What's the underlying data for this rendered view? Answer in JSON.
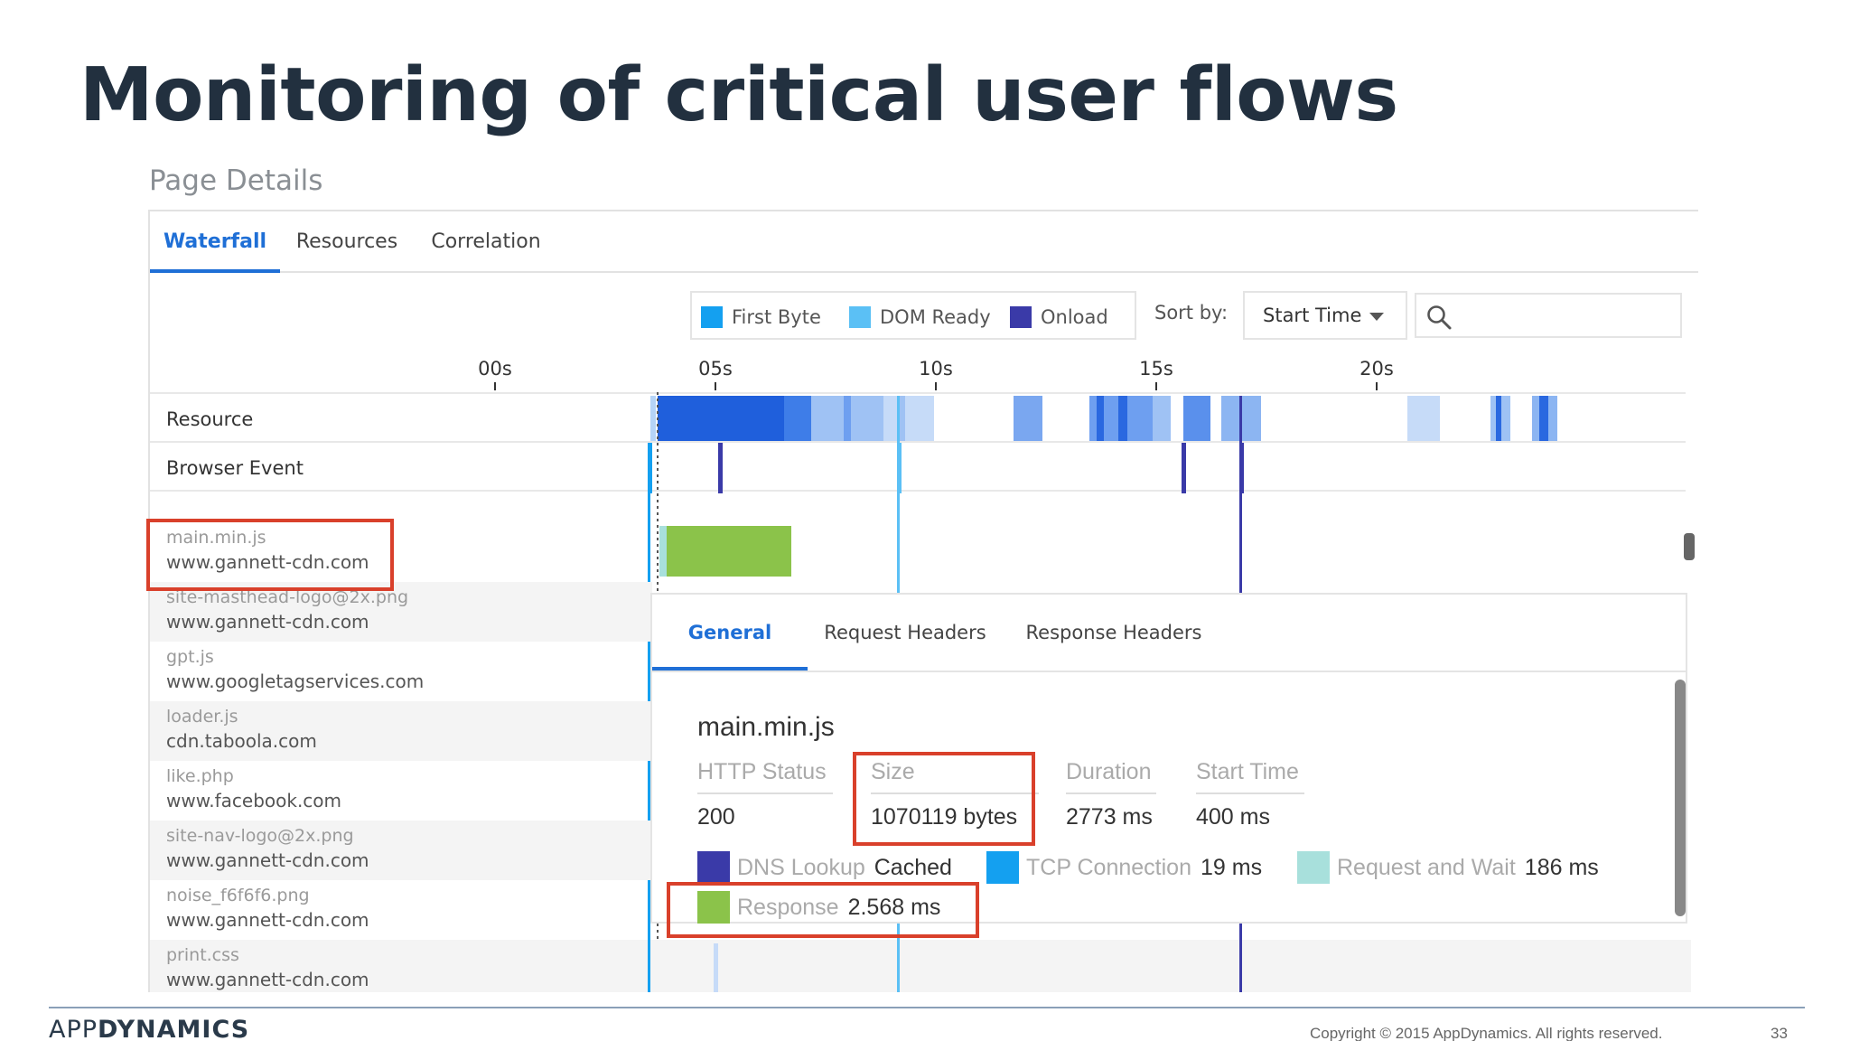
{
  "slide": {
    "title": "Monitoring of critical user flows",
    "page_number": "33",
    "copyright": "Copyright © 2015 AppDynamics. All rights reserved.",
    "logo_light": "APP",
    "logo_bold": "DYNAMICS"
  },
  "page_details": {
    "title": "Page Details",
    "tabs": [
      {
        "label": "Waterfall",
        "active": true
      },
      {
        "label": "Resources",
        "active": false
      },
      {
        "label": "Correlation",
        "active": false
      }
    ]
  },
  "legend": {
    "items": [
      {
        "label": "First Byte",
        "color": "#14a0f0"
      },
      {
        "label": "DOM Ready",
        "color": "#5bc0f5"
      },
      {
        "label": "Onload",
        "color": "#3a3aa8"
      }
    ]
  },
  "sort": {
    "label": "Sort by:",
    "value": "Start Time"
  },
  "search": {
    "icon": "search-icon",
    "value": ""
  },
  "timeline": {
    "ticks": [
      "00s",
      "05s",
      "10s",
      "15s",
      "20s"
    ],
    "rows": [
      "Resource",
      "Browser Event"
    ]
  },
  "resources": [
    {
      "name": "main.min.js",
      "host": "www.gannett-cdn.com"
    },
    {
      "name": "site-masthead-logo@2x.png",
      "host": "www.gannett-cdn.com"
    },
    {
      "name": "gpt.js",
      "host": "www.googletagservices.com"
    },
    {
      "name": "loader.js",
      "host": "cdn.taboola.com"
    },
    {
      "name": "like.php",
      "host": "www.facebook.com"
    },
    {
      "name": "site-nav-logo@2x.png",
      "host": "www.gannett-cdn.com"
    },
    {
      "name": "noise_f6f6f6.png",
      "host": "www.gannett-cdn.com"
    },
    {
      "name": "print.css",
      "host": "www.gannett-cdn.com"
    }
  ],
  "detail": {
    "tabs": [
      {
        "label": "General",
        "active": true
      },
      {
        "label": "Request Headers",
        "active": false
      },
      {
        "label": "Response Headers",
        "active": false
      }
    ],
    "title": "main.min.js",
    "fields": [
      {
        "label": "HTTP Status",
        "value": "200"
      },
      {
        "label": "Size",
        "value": "1070119 bytes"
      },
      {
        "label": "Duration",
        "value": "2773 ms"
      },
      {
        "label": "Start Time",
        "value": "400 ms"
      }
    ],
    "timings": [
      {
        "label": "DNS Lookup",
        "value": "Cached",
        "color": "#3a3aa8"
      },
      {
        "label": "TCP Connection",
        "value": "19 ms",
        "color": "#14a0f0"
      },
      {
        "label": "Request and Wait",
        "value": "186 ms",
        "color": "#a8e0dc"
      },
      {
        "label": "Response",
        "value": "2.568 ms",
        "color": "#8bc34a"
      }
    ]
  },
  "colors": {
    "accent": "#1f6fd6",
    "highlight": "#d9402b",
    "title": "#22303f",
    "response_bar": "#8bc34a"
  }
}
